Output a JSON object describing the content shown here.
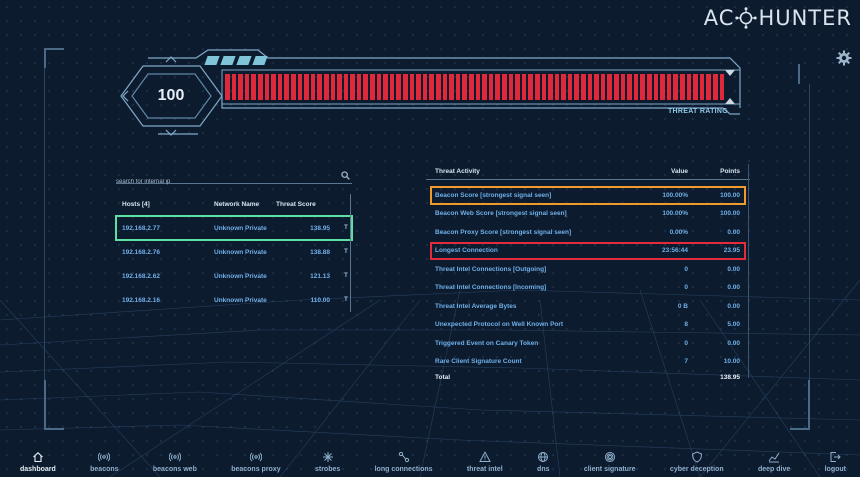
{
  "app": {
    "logo_left": "AC",
    "logo_right": "HUNTER",
    "settings_icon": "gear-icon"
  },
  "rating": {
    "score": "100",
    "label": "THREAT RATING",
    "fill_fraction": 1.0,
    "bar_color": "#e0283b"
  },
  "hosts": {
    "search_placeholder": "search for internal ip",
    "headers": {
      "host": "Hosts [4]",
      "network": "Network Name",
      "score": "Threat Score"
    },
    "rows": [
      {
        "ip": "192.168.2.77",
        "network": "Unknown Private",
        "score": "138.95"
      },
      {
        "ip": "192.168.2.76",
        "network": "Unknown Private",
        "score": "138.88"
      },
      {
        "ip": "192.168.2.62",
        "network": "Unknown Private",
        "score": "121.13"
      },
      {
        "ip": "192.168.2.16",
        "network": "Unknown Private",
        "score": "110.00"
      }
    ],
    "filter_glyph": "T"
  },
  "threat_activity": {
    "headers": {
      "name": "Threat Activity",
      "value": "Value",
      "points": "Points"
    },
    "rows": [
      {
        "name": "Beacon Score [strongest signal seen]",
        "value": "100.00%",
        "points": "100.00"
      },
      {
        "name": "Beacon Web Score [strongest signal seen]",
        "value": "100.00%",
        "points": "100.00"
      },
      {
        "name": "Beacon Proxy Score [strongest signal seen]",
        "value": "0.00%",
        "points": "0.00"
      },
      {
        "name": "Longest Connection",
        "value": "23:56:44",
        "points": "23.95"
      },
      {
        "name": "Threat Intel Connections [Outgoing]",
        "value": "0",
        "points": "0.00"
      },
      {
        "name": "Threat Intel Connections [Incoming]",
        "value": "0",
        "points": "0.00"
      },
      {
        "name": "Threat Intel Average Bytes",
        "value": "0 B",
        "points": "0.00"
      },
      {
        "name": "Unexpected Protocol on Well Known Port",
        "value": "8",
        "points": "5.00"
      },
      {
        "name": "Triggered Event on Canary Token",
        "value": "0",
        "points": "0.00"
      },
      {
        "name": "Rare Client Signature Count",
        "value": "7",
        "points": "10.00"
      }
    ],
    "total_label": "Total",
    "total_points": "138.95"
  },
  "nav": {
    "items": [
      {
        "label": "dashboard",
        "icon": "home-icon"
      },
      {
        "label": "beacons",
        "icon": "signal-icon"
      },
      {
        "label": "beacons web",
        "icon": "signal-icon"
      },
      {
        "label": "beacons proxy",
        "icon": "signal-icon"
      },
      {
        "label": "strobes",
        "icon": "burst-icon"
      },
      {
        "label": "long connections",
        "icon": "connection-icon"
      },
      {
        "label": "threat intel",
        "icon": "warning-icon"
      },
      {
        "label": "dns",
        "icon": "globe-icon"
      },
      {
        "label": "client signature",
        "icon": "fingerprint-icon"
      },
      {
        "label": "cyber deception",
        "icon": "shield-icon"
      },
      {
        "label": "deep dive",
        "icon": "chart-icon"
      },
      {
        "label": "logout",
        "icon": "logout-icon"
      }
    ],
    "active": "dashboard"
  },
  "colors": {
    "background": "#0d1b2e",
    "accent_text": "#6fb0e8",
    "selected_host": "#5ee0a4",
    "highlight_orange": "#f09a2c",
    "highlight_red": "#e32b3c"
  }
}
